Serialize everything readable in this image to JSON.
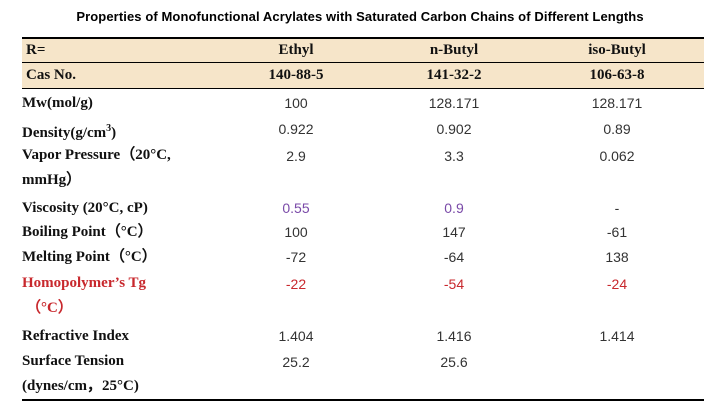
{
  "title": "Properties of Monofunctional Acrylates with Saturated Carbon Chains of Different Lengths",
  "header": {
    "label": "R=",
    "columns": [
      "Ethyl",
      "n-Butyl",
      "iso-Butyl"
    ]
  },
  "cas": {
    "label": "Cas No.",
    "values": [
      "140-88-5",
      "141-32-2",
      "106-63-8"
    ]
  },
  "rows": [
    {
      "label": "Mw(mol/g)",
      "values": [
        "100",
        "128.171",
        "128.171"
      ]
    },
    {
      "label_main": "Density(g/cm",
      "label_sup": "3",
      "label_end": ")",
      "values": [
        "0.922",
        "0.902",
        "0.89"
      ]
    },
    {
      "label_line1": "Vapor Pressure（20°C,",
      "label_line2": "mmHg）",
      "values": [
        "2.9",
        "3.3",
        "0.062"
      ]
    },
    {
      "label": "Viscosity (20°C, cP)",
      "values": [
        "0.55",
        "0.9",
        "-"
      ],
      "value_color": "#7a4aa8"
    },
    {
      "label": "Boiling Point（°C）",
      "values": [
        "100",
        "147",
        "-61"
      ]
    },
    {
      "label": "Melting Point（°C）",
      "values": [
        "-72",
        "-64",
        "138"
      ]
    },
    {
      "label_line1": "Homopolymer’s Tg",
      "label_line2": "（°C）",
      "values": [
        "-22",
        "-54",
        "-24"
      ],
      "color": "#c8282d"
    },
    {
      "label": "Refractive Index",
      "values": [
        "1.404",
        "1.416",
        "1.414"
      ]
    },
    {
      "label_line1": "Surface Tension",
      "label_line2": "(dynes/cm，25°C)",
      "values": [
        "25.2",
        "25.6",
        ""
      ]
    }
  ]
}
